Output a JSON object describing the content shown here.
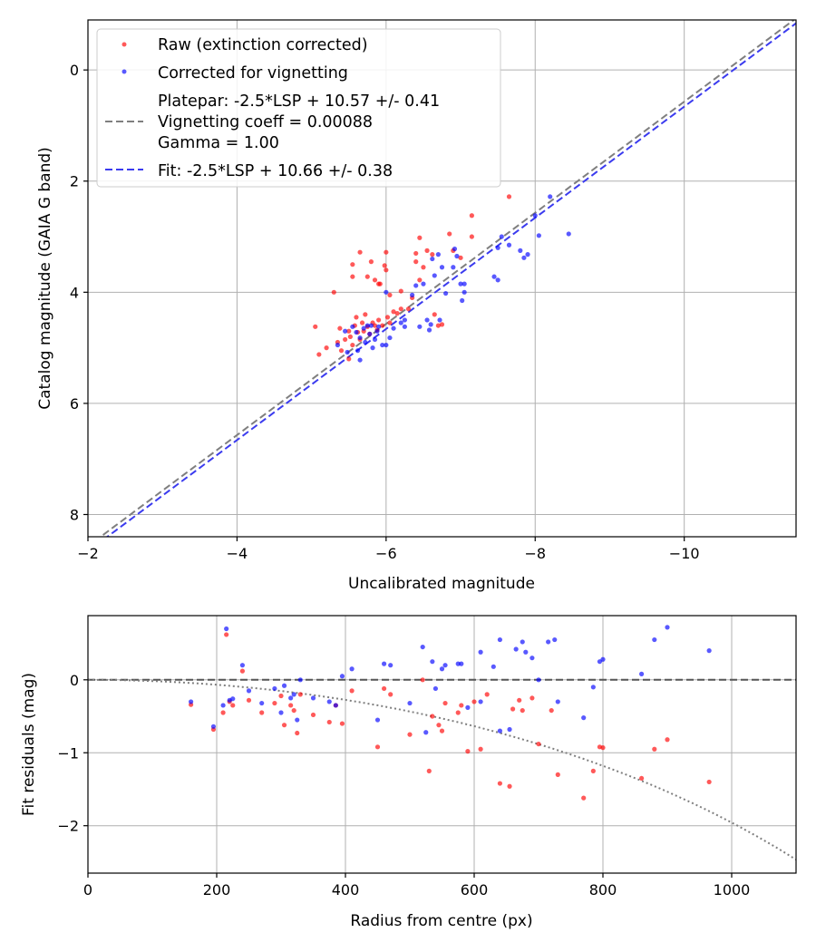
{
  "chart_data": [
    {
      "type": "scatter",
      "xlabel": "Uncalibrated magnitude",
      "ylabel": "Catalog magnitude (GAIA G band)",
      "xlim": [
        -2,
        -11.5
      ],
      "ylim": [
        8.4,
        -0.9
      ],
      "x_ticks": [
        -2,
        -4,
        -6,
        -8,
        -10
      ],
      "x_tick_labels": [
        "−2",
        "−4",
        "−6",
        "−8",
        "−10"
      ],
      "y_ticks": [
        0,
        2,
        4,
        6,
        8
      ],
      "y_tick_labels": [
        "0",
        "2",
        "4",
        "6",
        "8"
      ],
      "grid": true,
      "legend_position": "upper-left",
      "legend": {
        "raw": "Raw (extinction corrected)",
        "corrected": "Corrected for vignetting",
        "platepar_line1": "Platepar: -2.5*LSP + 10.57 +/- 0.41",
        "platepar_line2": "Vignetting coeff = 0.00088",
        "platepar_line3": "Gamma = 1.00",
        "fit": "Fit: -2.5*LSP + 10.66 +/- 0.38"
      },
      "colors": {
        "raw": "#ff0000",
        "corrected": "#0000ff",
        "platepar": "#7f7f7f",
        "fit": "#3b3bef"
      },
      "lines": [
        {
          "name": "platepar",
          "slope": 1.0,
          "intercept": 10.57,
          "style": "dashed"
        },
        {
          "name": "fit",
          "slope": 1.0,
          "intercept": 10.66,
          "style": "dashed"
        }
      ],
      "series": [
        {
          "name": "Raw (extinction corrected)",
          "points": [
            [
              -5.05,
              4.62
            ],
            [
              -5.1,
              5.12
            ],
            [
              -5.2,
              5.0
            ],
            [
              -5.3,
              4.0
            ],
            [
              -5.35,
              4.9
            ],
            [
              -5.38,
              4.65
            ],
            [
              -5.4,
              5.05
            ],
            [
              -5.45,
              4.85
            ],
            [
              -5.5,
              4.7
            ],
            [
              -5.5,
              5.2
            ],
            [
              -5.52,
              4.8
            ],
            [
              -5.55,
              4.95
            ],
            [
              -5.55,
              3.5
            ],
            [
              -5.55,
              3.72
            ],
            [
              -5.58,
              4.6
            ],
            [
              -5.6,
              4.45
            ],
            [
              -5.62,
              4.72
            ],
            [
              -5.65,
              4.85
            ],
            [
              -5.65,
              3.28
            ],
            [
              -5.68,
              4.55
            ],
            [
              -5.7,
              4.7
            ],
            [
              -5.72,
              4.4
            ],
            [
              -5.75,
              4.62
            ],
            [
              -5.75,
              3.72
            ],
            [
              -5.78,
              4.75
            ],
            [
              -5.8,
              3.45
            ],
            [
              -5.82,
              4.55
            ],
            [
              -5.85,
              4.6
            ],
            [
              -5.85,
              3.78
            ],
            [
              -5.88,
              4.68
            ],
            [
              -5.9,
              4.5
            ],
            [
              -5.9,
              3.85
            ],
            [
              -5.92,
              3.85
            ],
            [
              -5.95,
              4.6
            ],
            [
              -5.98,
              3.52
            ],
            [
              -6.0,
              3.28
            ],
            [
              -6.0,
              3.6
            ],
            [
              -6.02,
              4.45
            ],
            [
              -6.05,
              4.05
            ],
            [
              -6.05,
              4.55
            ],
            [
              -6.1,
              4.35
            ],
            [
              -6.15,
              4.38
            ],
            [
              -6.2,
              3.98
            ],
            [
              -6.2,
              4.3
            ],
            [
              -6.3,
              4.3
            ],
            [
              -6.35,
              4.1
            ],
            [
              -6.4,
              3.3
            ],
            [
              -6.4,
              3.45
            ],
            [
              -6.45,
              3.02
            ],
            [
              -6.45,
              3.78
            ],
            [
              -6.5,
              3.55
            ],
            [
              -6.55,
              3.25
            ],
            [
              -6.62,
              3.32
            ],
            [
              -6.65,
              4.4
            ],
            [
              -6.7,
              4.6
            ],
            [
              -6.75,
              4.58
            ],
            [
              -6.85,
              2.95
            ],
            [
              -6.9,
              3.25
            ],
            [
              -7.0,
              3.38
            ],
            [
              -7.15,
              3.0
            ],
            [
              -7.15,
              2.62
            ],
            [
              -7.65,
              2.28
            ]
          ]
        },
        {
          "name": "Corrected for vignetting",
          "points": [
            [
              -5.35,
              4.95
            ],
            [
              -5.45,
              4.7
            ],
            [
              -5.48,
              5.08
            ],
            [
              -5.55,
              4.62
            ],
            [
              -5.6,
              4.72
            ],
            [
              -5.62,
              5.05
            ],
            [
              -5.65,
              4.82
            ],
            [
              -5.65,
              5.22
            ],
            [
              -5.7,
              4.65
            ],
            [
              -5.72,
              4.9
            ],
            [
              -5.75,
              4.6
            ],
            [
              -5.78,
              4.75
            ],
            [
              -5.8,
              4.6
            ],
            [
              -5.82,
              5.0
            ],
            [
              -5.85,
              4.85
            ],
            [
              -5.88,
              4.7
            ],
            [
              -5.9,
              4.62
            ],
            [
              -5.95,
              4.95
            ],
            [
              -6.0,
              4.95
            ],
            [
              -6.0,
              4.0
            ],
            [
              -6.05,
              4.82
            ],
            [
              -6.1,
              4.65
            ],
            [
              -6.2,
              4.55
            ],
            [
              -6.25,
              4.5
            ],
            [
              -6.25,
              4.62
            ],
            [
              -6.35,
              4.05
            ],
            [
              -6.4,
              3.88
            ],
            [
              -6.45,
              4.62
            ],
            [
              -6.5,
              3.85
            ],
            [
              -6.55,
              4.5
            ],
            [
              -6.58,
              4.68
            ],
            [
              -6.6,
              4.58
            ],
            [
              -6.62,
              3.4
            ],
            [
              -6.65,
              3.7
            ],
            [
              -6.7,
              3.32
            ],
            [
              -6.72,
              4.5
            ],
            [
              -6.75,
              3.55
            ],
            [
              -6.8,
              4.02
            ],
            [
              -6.9,
              3.55
            ],
            [
              -6.92,
              3.22
            ],
            [
              -6.95,
              3.35
            ],
            [
              -7.0,
              3.85
            ],
            [
              -7.02,
              4.15
            ],
            [
              -7.05,
              4.0
            ],
            [
              -7.05,
              3.85
            ],
            [
              -7.45,
              3.72
            ],
            [
              -7.5,
              3.78
            ],
            [
              -7.5,
              3.2
            ],
            [
              -7.55,
              3.0
            ],
            [
              -7.65,
              3.15
            ],
            [
              -7.8,
              3.25
            ],
            [
              -7.85,
              3.38
            ],
            [
              -7.9,
              3.32
            ],
            [
              -8.0,
              2.62
            ],
            [
              -8.2,
              2.28
            ],
            [
              -8.05,
              2.98
            ],
            [
              -8.45,
              2.95
            ]
          ]
        }
      ]
    },
    {
      "type": "scatter",
      "xlabel": "Radius from centre (px)",
      "ylabel": "Fit residuals (mag)",
      "xlim": [
        0,
        1100
      ],
      "ylim": [
        -2.65,
        0.88
      ],
      "x_ticks": [
        0,
        200,
        400,
        600,
        800,
        1000
      ],
      "x_tick_labels": [
        "0",
        "200",
        "400",
        "600",
        "800",
        "1000"
      ],
      "y_ticks": [
        0,
        -1,
        -2
      ],
      "y_tick_labels": [
        "0",
        "−1",
        "−2"
      ],
      "grid": true,
      "colors": {
        "raw": "#ff0000",
        "corrected": "#0000ff",
        "zero": "#555555",
        "model": "#7f7f7f"
      },
      "zero_line": 0,
      "vignetting_coeff": 0.00088,
      "series": [
        {
          "name": "Raw (extinction corrected)",
          "points": [
            [
              160,
              -0.34
            ],
            [
              195,
              -0.68
            ],
            [
              210,
              -0.45
            ],
            [
              215,
              0.62
            ],
            [
              220,
              -0.3
            ],
            [
              225,
              -0.35
            ],
            [
              240,
              0.12
            ],
            [
              250,
              -0.28
            ],
            [
              270,
              -0.45
            ],
            [
              290,
              -0.32
            ],
            [
              300,
              -0.22
            ],
            [
              305,
              -0.62
            ],
            [
              315,
              -0.35
            ],
            [
              320,
              -0.42
            ],
            [
              325,
              -0.73
            ],
            [
              330,
              -0.2
            ],
            [
              350,
              -0.48
            ],
            [
              375,
              -0.58
            ],
            [
              385,
              -0.35
            ],
            [
              395,
              -0.6
            ],
            [
              410,
              -0.15
            ],
            [
              450,
              -0.92
            ],
            [
              460,
              -0.12
            ],
            [
              470,
              -0.2
            ],
            [
              500,
              -0.75
            ],
            [
              520,
              0.0
            ],
            [
              530,
              -1.25
            ],
            [
              535,
              -0.5
            ],
            [
              545,
              -0.62
            ],
            [
              550,
              -0.7
            ],
            [
              555,
              -0.32
            ],
            [
              575,
              -0.45
            ],
            [
              580,
              -0.35
            ],
            [
              590,
              -0.98
            ],
            [
              600,
              -0.3
            ],
            [
              610,
              -0.95
            ],
            [
              620,
              -0.2
            ],
            [
              640,
              -1.42
            ],
            [
              655,
              -1.46
            ],
            [
              660,
              -0.4
            ],
            [
              670,
              -0.28
            ],
            [
              675,
              -0.42
            ],
            [
              690,
              -0.25
            ],
            [
              700,
              -0.88
            ],
            [
              720,
              -0.42
            ],
            [
              730,
              -1.3
            ],
            [
              770,
              -1.62
            ],
            [
              785,
              -1.25
            ],
            [
              795,
              -0.92
            ],
            [
              800,
              -0.93
            ],
            [
              860,
              -1.35
            ],
            [
              880,
              -0.95
            ],
            [
              900,
              -0.82
            ],
            [
              965,
              -1.4
            ]
          ]
        },
        {
          "name": "Corrected for vignetting",
          "points": [
            [
              160,
              -0.3
            ],
            [
              195,
              -0.64
            ],
            [
              210,
              -0.35
            ],
            [
              215,
              0.7
            ],
            [
              220,
              -0.28
            ],
            [
              225,
              -0.26
            ],
            [
              240,
              0.2
            ],
            [
              250,
              -0.15
            ],
            [
              270,
              -0.32
            ],
            [
              290,
              -0.12
            ],
            [
              300,
              -0.45
            ],
            [
              305,
              -0.08
            ],
            [
              315,
              -0.25
            ],
            [
              320,
              -0.2
            ],
            [
              325,
              -0.55
            ],
            [
              330,
              0.0
            ],
            [
              350,
              -0.25
            ],
            [
              375,
              -0.3
            ],
            [
              385,
              -0.35
            ],
            [
              395,
              0.05
            ],
            [
              410,
              0.15
            ],
            [
              450,
              -0.55
            ],
            [
              460,
              0.22
            ],
            [
              470,
              0.2
            ],
            [
              500,
              -0.32
            ],
            [
              520,
              0.45
            ],
            [
              525,
              -0.72
            ],
            [
              535,
              0.25
            ],
            [
              540,
              -0.12
            ],
            [
              550,
              0.15
            ],
            [
              555,
              0.2
            ],
            [
              575,
              0.22
            ],
            [
              580,
              0.22
            ],
            [
              590,
              -0.38
            ],
            [
              610,
              0.38
            ],
            [
              610,
              -0.3
            ],
            [
              630,
              0.18
            ],
            [
              640,
              0.55
            ],
            [
              640,
              -0.7
            ],
            [
              655,
              -0.68
            ],
            [
              665,
              0.42
            ],
            [
              675,
              0.52
            ],
            [
              680,
              0.38
            ],
            [
              690,
              0.3
            ],
            [
              700,
              0.0
            ],
            [
              715,
              0.52
            ],
            [
              725,
              0.55
            ],
            [
              730,
              -0.3
            ],
            [
              770,
              -0.52
            ],
            [
              785,
              -0.1
            ],
            [
              795,
              0.25
            ],
            [
              800,
              0.28
            ],
            [
              860,
              0.08
            ],
            [
              880,
              0.55
            ],
            [
              900,
              0.72
            ],
            [
              965,
              0.4
            ]
          ]
        }
      ]
    }
  ]
}
